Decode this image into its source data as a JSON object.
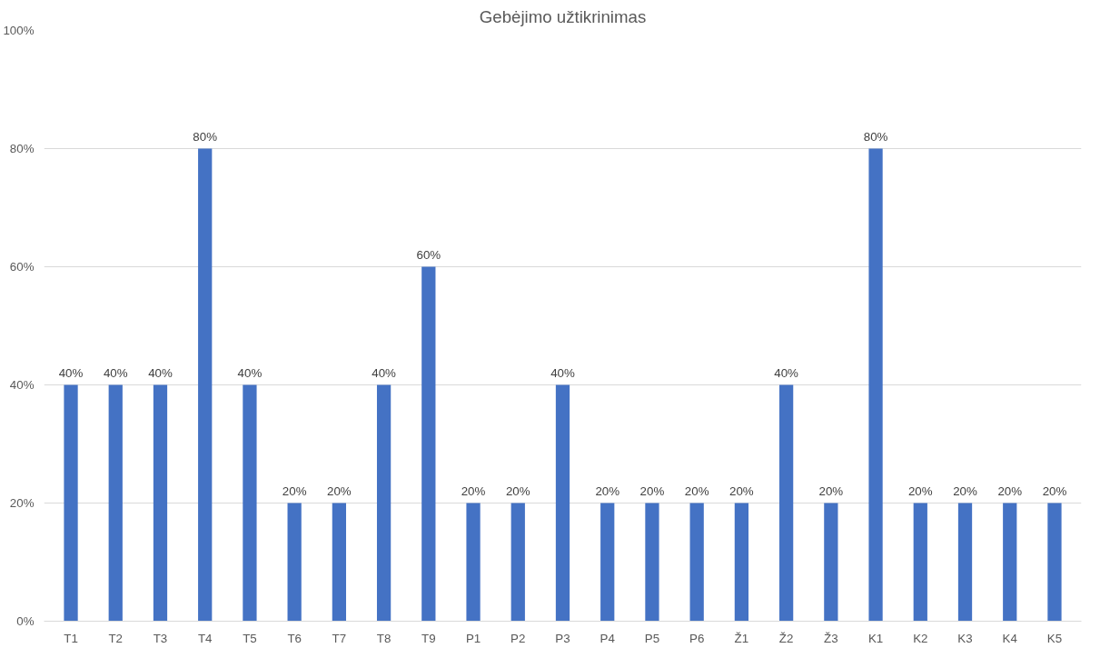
{
  "chart_data": {
    "type": "bar",
    "title": "Gebėjimo užtikrinimas",
    "categories": [
      "T1",
      "T2",
      "T3",
      "T4",
      "T5",
      "T6",
      "T7",
      "T8",
      "T9",
      "P1",
      "P2",
      "P3",
      "P4",
      "P5",
      "P6",
      "Ž1",
      "Ž2",
      "Ž3",
      "K1",
      "K2",
      "K3",
      "K4",
      "K5"
    ],
    "values": [
      40,
      40,
      40,
      80,
      40,
      20,
      20,
      40,
      60,
      20,
      20,
      40,
      20,
      20,
      20,
      20,
      40,
      20,
      80,
      20,
      20,
      20,
      20
    ],
    "value_labels": [
      "40%",
      "40%",
      "40%",
      "80%",
      "40%",
      "20%",
      "20%",
      "40%",
      "60%",
      "20%",
      "20%",
      "40%",
      "20%",
      "20%",
      "20%",
      "20%",
      "40%",
      "20%",
      "80%",
      "20%",
      "20%",
      "20%",
      "20%"
    ],
    "color": "#4472c4",
    "ylim": [
      0,
      100
    ],
    "yticks": [
      {
        "value": 0,
        "label": "0%"
      },
      {
        "value": 20,
        "label": "20%"
      },
      {
        "value": 40,
        "label": "40%"
      },
      {
        "value": 60,
        "label": "60%"
      },
      {
        "value": 80,
        "label": "80%"
      },
      {
        "value": 100,
        "label": "100%"
      }
    ],
    "grid": "y"
  }
}
